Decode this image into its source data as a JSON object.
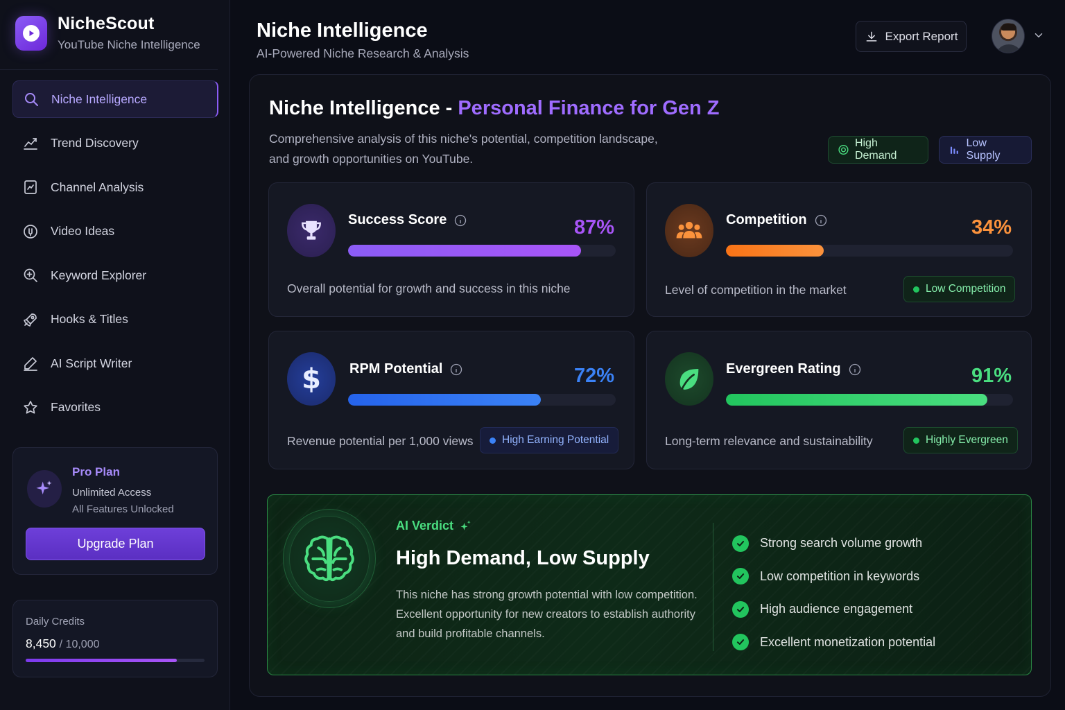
{
  "brand": {
    "name": "NicheScout",
    "tagline": "YouTube Niche Intelligence"
  },
  "nav": [
    {
      "label": "Niche Intelligence",
      "icon": "search-icon",
      "active": true
    },
    {
      "label": "Trend Discovery",
      "icon": "trend-chart-icon"
    },
    {
      "label": "Channel Analysis",
      "icon": "channel-icon"
    },
    {
      "label": "Video Ideas",
      "icon": "lightbulb-icon"
    },
    {
      "label": "Keyword Explorer",
      "icon": "keyword-search-icon"
    },
    {
      "label": "Hooks & Titles",
      "icon": "rocket-icon"
    },
    {
      "label": "AI Script Writer",
      "icon": "pen-icon"
    },
    {
      "label": "Favorites",
      "icon": "star-icon"
    }
  ],
  "plan": {
    "title": "Pro Plan",
    "line1": "Unlimited Access",
    "line2": "All Features Unlocked",
    "button": "Upgrade Plan"
  },
  "credits": {
    "label": "Daily Credits",
    "used": "8,450",
    "total": "/ 10,000",
    "fraction": 0.845
  },
  "header": {
    "title": "Niche Intelligence",
    "subtitle": "AI-Powered Niche Research & Analysis",
    "export": "Export Report"
  },
  "niche": {
    "title_prefix": "Niche Intelligence - ",
    "title_accent": "Personal Finance for Gen Z",
    "description": "Comprehensive analysis of this niche's potential, competition landscape, and growth opportunities on YouTube.",
    "tag_demand": "High Demand",
    "tag_supply": "Low Supply"
  },
  "metrics": {
    "success": {
      "title": "Success Score",
      "value": "87%",
      "fraction": 0.87,
      "desc": "Overall potential for growth and success in this niche",
      "color": "#a855f7"
    },
    "competition": {
      "title": "Competition",
      "value": "34%",
      "fraction": 0.34,
      "desc": "Level of competition in the market",
      "badge": "Low Competition",
      "color": "#fb923c"
    },
    "rpm": {
      "title": "RPM Potential",
      "value": "72%",
      "fraction": 0.72,
      "desc": "Revenue potential per 1,000 views",
      "badge": "High Earning Potential",
      "color": "#3b82f6"
    },
    "evergreen": {
      "title": "Evergreen Rating",
      "value": "91%",
      "fraction": 0.91,
      "desc": "Long-term relevance and sustainability",
      "badge": "Highly Evergreen",
      "color": "#22c55e"
    }
  },
  "verdict": {
    "label": "AI Verdict",
    "title": "High Demand, Low Supply",
    "description": "This niche has strong growth potential with low competition. Excellent opportunity for new creators to establish authority and build profitable channels.",
    "points": [
      "Strong search volume growth",
      "Low competition in keywords",
      "High audience engagement",
      "Excellent monetization potential"
    ]
  }
}
